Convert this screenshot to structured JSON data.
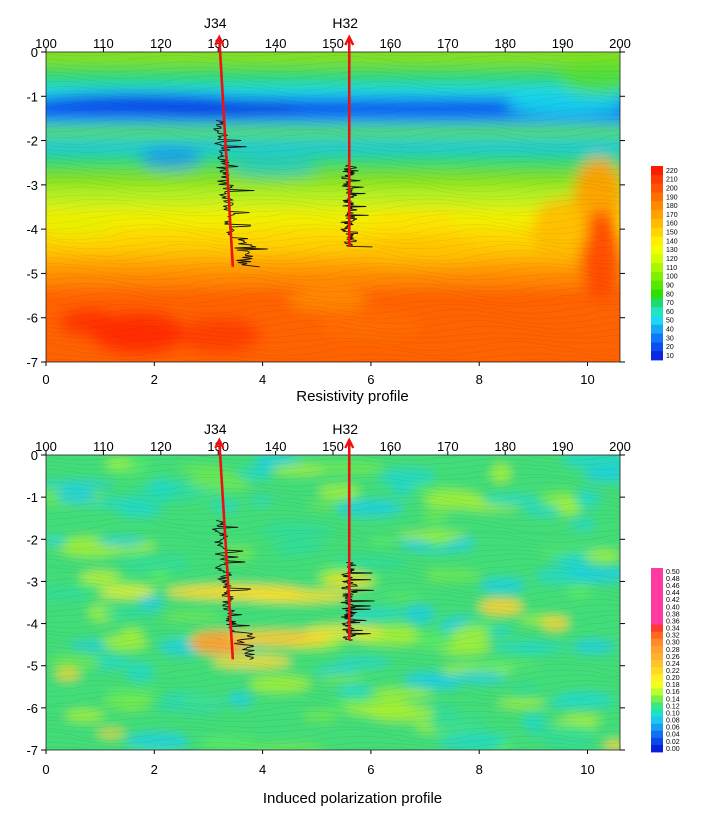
{
  "chart_data": [
    {
      "type": "heatmap",
      "title": "Resistivity profile",
      "x_bottom": {
        "ticks": [
          0,
          2,
          4,
          6,
          8,
          10
        ],
        "range": [
          0,
          10.6
        ]
      },
      "x_top": {
        "ticks": [
          100,
          110,
          120,
          130,
          140,
          150,
          160,
          170,
          180,
          190,
          200
        ],
        "range": [
          100,
          200
        ]
      },
      "y": {
        "ticks": [
          0,
          -1,
          -2,
          -3,
          -4,
          -5,
          -6,
          -7
        ],
        "range": [
          -7,
          0
        ]
      },
      "wells": [
        {
          "name": "J34",
          "x_top": 3.2,
          "x_bottom": 3.45,
          "y_top": -1.55,
          "y_bottom": -4.85
        },
        {
          "name": "H32",
          "x_top": 5.6,
          "x_bottom": 5.6,
          "y_top": -2.55,
          "y_bottom": -4.4
        }
      ],
      "colorbar": {
        "labels": [
          "220",
          "210",
          "200",
          "190",
          "180",
          "170",
          "160",
          "150",
          "140",
          "130",
          "120",
          "110",
          "100",
          "90",
          "80",
          "70",
          "60",
          "50",
          "40",
          "30",
          "20",
          "10"
        ],
        "colors": [
          "#ff1a00",
          "#ff3a00",
          "#ff5500",
          "#ff6f00",
          "#ff8a00",
          "#ffa200",
          "#ffbb00",
          "#ffd400",
          "#ffee00",
          "#f2ff00",
          "#d2ff00",
          "#aaf700",
          "#7ff000",
          "#55e800",
          "#2ee000",
          "#1fd870",
          "#1fe6c0",
          "#1cd8f0",
          "#17a8f8",
          "#1178f8",
          "#0c4ff0",
          "#0a28e0"
        ]
      },
      "grid": false
    },
    {
      "type": "heatmap",
      "title": "Induced polarization profile",
      "x_bottom": {
        "ticks": [
          0,
          2,
          4,
          6,
          8,
          10
        ],
        "range": [
          0,
          10.6
        ]
      },
      "x_top": {
        "ticks": [
          100,
          110,
          120,
          130,
          140,
          150,
          160,
          170,
          180,
          190,
          200
        ],
        "range": [
          100,
          200
        ]
      },
      "y": {
        "ticks": [
          0,
          -1,
          -2,
          -3,
          -4,
          -5,
          -6,
          -7
        ],
        "range": [
          -7,
          0
        ]
      },
      "wells": [
        {
          "name": "J34",
          "x_top": 3.2,
          "x_bottom": 3.45,
          "y_top": -1.55,
          "y_bottom": -4.85
        },
        {
          "name": "H32",
          "x_top": 5.6,
          "x_bottom": 5.6,
          "y_top": -2.55,
          "y_bottom": -4.4
        }
      ],
      "colorbar": {
        "labels": [
          "0.50",
          "0.48",
          "0.46",
          "0.44",
          "0.42",
          "0.40",
          "0.38",
          "0.36",
          "0.34",
          "0.32",
          "0.30",
          "0.28",
          "0.26",
          "0.24",
          "0.22",
          "0.20",
          "0.18",
          "0.16",
          "0.14",
          "0.12",
          "0.10",
          "0.08",
          "0.06",
          "0.04",
          "0.02",
          "0.00"
        ],
        "colors": [
          "#ff3aa0",
          "#ff3aa0",
          "#ff3aa0",
          "#ff3aa0",
          "#ff3aa0",
          "#ff3aa0",
          "#ff3aa0",
          "#ff3aa0",
          "#ff3a30",
          "#ff6a20",
          "#ff8a28",
          "#ffa030",
          "#ffb030",
          "#ffc428",
          "#ffd828",
          "#ffee20",
          "#f0ff20",
          "#b8ff30",
          "#7cf04a",
          "#3ce880",
          "#1ee0c8",
          "#1cc8f0",
          "#15a0f8",
          "#1070f0",
          "#0a48e8",
          "#0820d8"
        ]
      },
      "grid": false
    }
  ],
  "colors": {
    "well_line": "#ee1111",
    "log_trace": "#111111"
  }
}
